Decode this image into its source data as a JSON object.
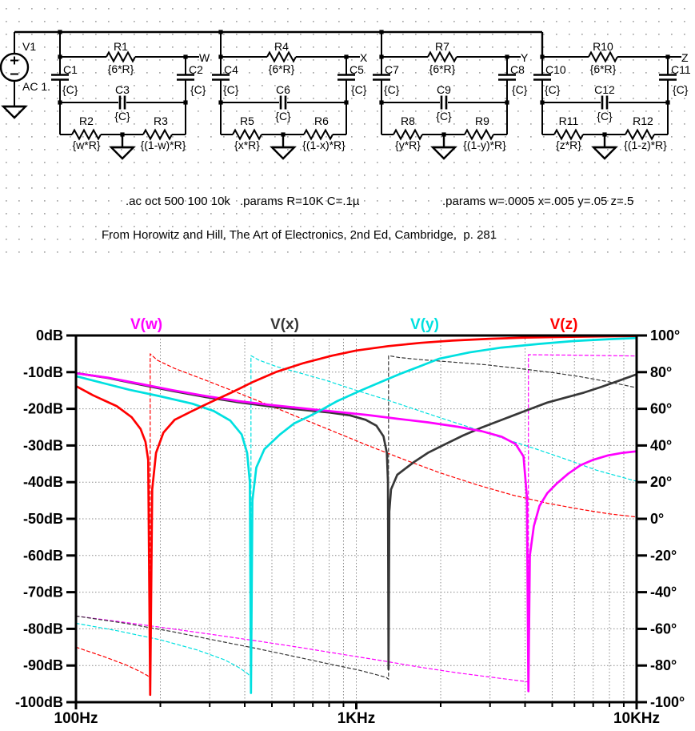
{
  "schematic": {
    "source": {
      "name": "V1",
      "value": "AC 1."
    },
    "cells": [
      {
        "node": "W",
        "r_top": "R1",
        "r_top_val": "{6*R}",
        "c_left": "C1",
        "c_left_val": "{C}",
        "c_right": "C2",
        "c_right_val": "{C}",
        "c_mid": "C3",
        "c_mid_val": "{C}",
        "r_left": "R2",
        "r_left_val": "{w*R}",
        "r_right": "R3",
        "r_right_val": "{(1-w)*R}"
      },
      {
        "node": "X",
        "r_top": "R4",
        "r_top_val": "{6*R}",
        "c_left": "C4",
        "c_left_val": "{C}",
        "c_right": "C5",
        "c_right_val": "{C}",
        "c_mid": "C6",
        "c_mid_val": "{C}",
        "r_left": "R5",
        "r_left_val": "{x*R}",
        "r_right": "R6",
        "r_right_val": "{(1-x)*R}"
      },
      {
        "node": "Y",
        "r_top": "R7",
        "r_top_val": "{6*R}",
        "c_left": "C7",
        "c_left_val": "{C}",
        "c_right": "C8",
        "c_right_val": "{C}",
        "c_mid": "C9",
        "c_mid_val": "{C}",
        "r_left": "R8",
        "r_left_val": "{y*R}",
        "r_right": "R9",
        "r_right_val": "{(1-y)*R}"
      },
      {
        "node": "Z",
        "r_top": "R10",
        "r_top_val": "{6*R}",
        "c_left": "C10",
        "c_left_val": "{C}",
        "c_right": "C11",
        "c_right_val": "{C}",
        "c_mid": "C12",
        "c_mid_val": "{C}",
        "r_left": "R11",
        "r_left_val": "{z*R}",
        "r_right": "R12",
        "r_right_val": "{(1-z)*R}"
      }
    ],
    "directives": [
      ".ac oct 500 100 10k",
      ".params R=10K C=.1µ",
      ".params w=.0005 x=.005 y=.05 z=.5"
    ],
    "attribution": "From Horowitz and Hill, The Art of Electronics, 2nd Ed, Cambridge,  p. 281"
  },
  "chart_data": {
    "type": "line",
    "title": "",
    "xlabel": "",
    "ylabel_left": "dB",
    "ylabel_right": "degrees",
    "x_axis": {
      "scale": "log",
      "min": 100,
      "max": 10000,
      "tick_labels": [
        "100Hz",
        "1KHz",
        "10KHz"
      ],
      "minor_ticks": [
        200,
        300,
        400,
        500,
        600,
        700,
        800,
        900,
        2000,
        3000,
        4000,
        5000,
        6000,
        7000,
        8000,
        9000
      ]
    },
    "y_axis_left": {
      "min": -100,
      "max": 0,
      "step": 10,
      "tick_labels": [
        "0dB",
        "-10dB",
        "-20dB",
        "-30dB",
        "-40dB",
        "-50dB",
        "-60dB",
        "-70dB",
        "-80dB",
        "-90dB",
        "-100dB"
      ]
    },
    "y_axis_right": {
      "min": -100,
      "max": 100,
      "step": 20,
      "tick_labels": [
        "100°",
        "80°",
        "60°",
        "40°",
        "20°",
        "0°",
        "-20°",
        "-40°",
        "-60°",
        "-80°",
        "-100°"
      ]
    },
    "legend": [
      {
        "label": "V(w)",
        "color": "#ff00ff"
      },
      {
        "label": "V(x)",
        "color": "#373737"
      },
      {
        "label": "V(y)",
        "color": "#00e0e0"
      },
      {
        "label": "V(z)",
        "color": "#ff0000"
      }
    ],
    "grid": true,
    "legend_position": "top",
    "notch_frequencies_hz": {
      "V(w)": 4110,
      "V(x)": 1303,
      "V(y)": 421,
      "V(z)": 184
    },
    "series": [
      {
        "name": "V(w) phase",
        "color": "#ff00ff",
        "axis": "right",
        "style": "dashed",
        "points": [
          [
            100,
            -53
          ],
          [
            150,
            -56.5
          ],
          [
            220,
            -60
          ],
          [
            320,
            -63.5
          ],
          [
            460,
            -67
          ],
          [
            650,
            -70.5
          ],
          [
            900,
            -74
          ],
          [
            1250,
            -77.5
          ],
          [
            1700,
            -81
          ],
          [
            2300,
            -84
          ],
          [
            3000,
            -86.3
          ],
          [
            3600,
            -87.8
          ],
          [
            4000,
            -88.7
          ],
          [
            4110,
            -89
          ],
          [
            4110,
            89.5
          ],
          [
            5000,
            89.4
          ],
          [
            6500,
            89.2
          ],
          [
            8000,
            89
          ],
          [
            10000,
            88.8
          ]
        ]
      },
      {
        "name": "V(x) phase",
        "color": "#373737",
        "axis": "right",
        "style": "dashed",
        "points": [
          [
            100,
            -53
          ],
          [
            150,
            -57
          ],
          [
            220,
            -61.5
          ],
          [
            320,
            -66.5
          ],
          [
            450,
            -71
          ],
          [
            620,
            -75.5
          ],
          [
            820,
            -79.5
          ],
          [
            1020,
            -82.5
          ],
          [
            1180,
            -85
          ],
          [
            1280,
            -86.5
          ],
          [
            1303,
            -87.5
          ],
          [
            1303,
            89
          ],
          [
            1420,
            88
          ],
          [
            1700,
            86.8
          ],
          [
            2200,
            85.5
          ],
          [
            2900,
            84
          ],
          [
            3800,
            82
          ],
          [
            5000,
            79.8
          ],
          [
            6300,
            77.5
          ],
          [
            7900,
            74.8
          ],
          [
            10000,
            71.5
          ]
        ]
      },
      {
        "name": "V(y) phase",
        "color": "#00e0e0",
        "axis": "right",
        "style": "dashed",
        "points": [
          [
            100,
            -57
          ],
          [
            140,
            -61
          ],
          [
            200,
            -66
          ],
          [
            270,
            -71.5
          ],
          [
            340,
            -77
          ],
          [
            385,
            -81.5
          ],
          [
            410,
            -84.5
          ],
          [
            421,
            -86.5
          ],
          [
            421,
            89
          ],
          [
            450,
            86.5
          ],
          [
            520,
            83
          ],
          [
            630,
            79.5
          ],
          [
            780,
            75.5
          ],
          [
            980,
            70.5
          ],
          [
            1250,
            65.5
          ],
          [
            1600,
            60
          ],
          [
            2050,
            54.5
          ],
          [
            2650,
            49
          ],
          [
            3400,
            43.5
          ],
          [
            4400,
            38
          ],
          [
            5600,
            32.5
          ],
          [
            7200,
            26.5
          ],
          [
            10000,
            20.5
          ]
        ]
      },
      {
        "name": "V(z) phase",
        "color": "#ff0000",
        "axis": "right",
        "style": "dashed",
        "points": [
          [
            100,
            -70
          ],
          [
            125,
            -75
          ],
          [
            150,
            -79.5
          ],
          [
            168,
            -83
          ],
          [
            180,
            -85.5
          ],
          [
            184,
            -87
          ],
          [
            184,
            90
          ],
          [
            195,
            86.5
          ],
          [
            225,
            82
          ],
          [
            280,
            76.5
          ],
          [
            360,
            70
          ],
          [
            470,
            63
          ],
          [
            620,
            55.5
          ],
          [
            820,
            48
          ],
          [
            1100,
            40
          ],
          [
            1500,
            32
          ],
          [
            2000,
            25
          ],
          [
            2700,
            18.5
          ],
          [
            3600,
            13
          ],
          [
            4800,
            8.5
          ],
          [
            6400,
            5
          ],
          [
            8000,
            2.7
          ],
          [
            10000,
            1
          ]
        ]
      },
      {
        "name": "V(x)",
        "color": "#373737",
        "axis": "left",
        "style": "solid",
        "points": [
          [
            100,
            -10.25
          ],
          [
            130,
            -11.6
          ],
          [
            170,
            -13.4
          ],
          [
            220,
            -15.1
          ],
          [
            290,
            -16.8
          ],
          [
            380,
            -18.2
          ],
          [
            500,
            -19.4
          ],
          [
            650,
            -20.3
          ],
          [
            800,
            -21
          ],
          [
            950,
            -21.8
          ],
          [
            1080,
            -23
          ],
          [
            1180,
            -24.6
          ],
          [
            1250,
            -27.5
          ],
          [
            1285,
            -32
          ],
          [
            1297,
            -40
          ],
          [
            1303,
            -91
          ],
          [
            1312,
            -48
          ],
          [
            1330,
            -42
          ],
          [
            1400,
            -38
          ],
          [
            1600,
            -34.6
          ],
          [
            1800,
            -32
          ],
          [
            2030,
            -30
          ],
          [
            2400,
            -27.3
          ],
          [
            2800,
            -25.1
          ],
          [
            3360,
            -22.8
          ],
          [
            4000,
            -20.6
          ],
          [
            4800,
            -18.3
          ],
          [
            5600,
            -16.9
          ],
          [
            6480,
            -15.6
          ],
          [
            7500,
            -14
          ],
          [
            8600,
            -12.4
          ],
          [
            10000,
            -10.6
          ]
        ]
      },
      {
        "name": "V(w)",
        "color": "#ff00ff",
        "axis": "left",
        "style": "solid",
        "points": [
          [
            100,
            -10.3
          ],
          [
            130,
            -11.5
          ],
          [
            170,
            -13.2
          ],
          [
            220,
            -14.9
          ],
          [
            290,
            -16.5
          ],
          [
            380,
            -17.9
          ],
          [
            500,
            -19
          ],
          [
            650,
            -19.9
          ],
          [
            850,
            -20.8
          ],
          [
            1100,
            -21.7
          ],
          [
            1400,
            -22.7
          ],
          [
            1800,
            -23.7
          ],
          [
            2300,
            -24.9
          ],
          [
            2800,
            -26.1
          ],
          [
            3300,
            -27.6
          ],
          [
            3700,
            -29.6
          ],
          [
            3950,
            -33
          ],
          [
            4060,
            -44
          ],
          [
            4110,
            -97
          ],
          [
            4160,
            -60
          ],
          [
            4300,
            -52
          ],
          [
            4500,
            -46.5
          ],
          [
            4800,
            -43
          ],
          [
            5200,
            -40.3
          ],
          [
            5700,
            -37.7
          ],
          [
            6300,
            -35.4
          ],
          [
            7000,
            -33.9
          ],
          [
            7900,
            -32.7
          ],
          [
            8900,
            -32
          ],
          [
            10000,
            -31.6
          ]
        ]
      },
      {
        "name": "V(y)",
        "color": "#00e0e0",
        "axis": "left",
        "style": "solid",
        "points": [
          [
            100,
            -11.1
          ],
          [
            125,
            -13
          ],
          [
            155,
            -14.8
          ],
          [
            200,
            -16.6
          ],
          [
            260,
            -18.6
          ],
          [
            310,
            -20.6
          ],
          [
            355,
            -23.2
          ],
          [
            390,
            -27
          ],
          [
            408,
            -32
          ],
          [
            417,
            -40
          ],
          [
            421,
            -97.5
          ],
          [
            426,
            -45
          ],
          [
            440,
            -36
          ],
          [
            470,
            -31
          ],
          [
            534,
            -27
          ],
          [
            600,
            -24
          ],
          [
            680,
            -22
          ],
          [
            742,
            -20.5
          ],
          [
            850,
            -18
          ],
          [
            1030,
            -15.1
          ],
          [
            1230,
            -12.6
          ],
          [
            1430,
            -10.5
          ],
          [
            1700,
            -8.3
          ],
          [
            1980,
            -6.3
          ],
          [
            2540,
            -4.6
          ],
          [
            3300,
            -3.3
          ],
          [
            4500,
            -2.3
          ],
          [
            6000,
            -1.5
          ],
          [
            8000,
            -1
          ],
          [
            10000,
            -0.7
          ]
        ]
      },
      {
        "name": "V(z)",
        "color": "#ff0000",
        "axis": "left",
        "style": "solid",
        "points": [
          [
            100,
            -13.8
          ],
          [
            115,
            -16.3
          ],
          [
            140,
            -19.3
          ],
          [
            158,
            -22.3
          ],
          [
            170,
            -25.5
          ],
          [
            177,
            -29
          ],
          [
            181,
            -34
          ],
          [
            184,
            -98
          ],
          [
            187,
            -42
          ],
          [
            193,
            -32
          ],
          [
            205,
            -26.5
          ],
          [
            225,
            -23
          ],
          [
            260,
            -20.6
          ],
          [
            300,
            -18.3
          ],
          [
            360,
            -15.5
          ],
          [
            430,
            -12.6
          ],
          [
            520,
            -9.9
          ],
          [
            650,
            -7.5
          ],
          [
            820,
            -5.5
          ],
          [
            1000,
            -4.1
          ],
          [
            1300,
            -2.9
          ],
          [
            1700,
            -2
          ],
          [
            2200,
            -1.4
          ],
          [
            3000,
            -0.9
          ],
          [
            4000,
            -0.6
          ],
          [
            5500,
            -0.4
          ],
          [
            7500,
            -0.25
          ],
          [
            10000,
            -0.15
          ]
        ]
      }
    ]
  },
  "colors": {
    "wire": "#000000",
    "grid_dots": "#a8a8a8",
    "plot_grid": "#8a8a8a",
    "plot_frame": "#000000",
    "background": "#ffffff"
  }
}
